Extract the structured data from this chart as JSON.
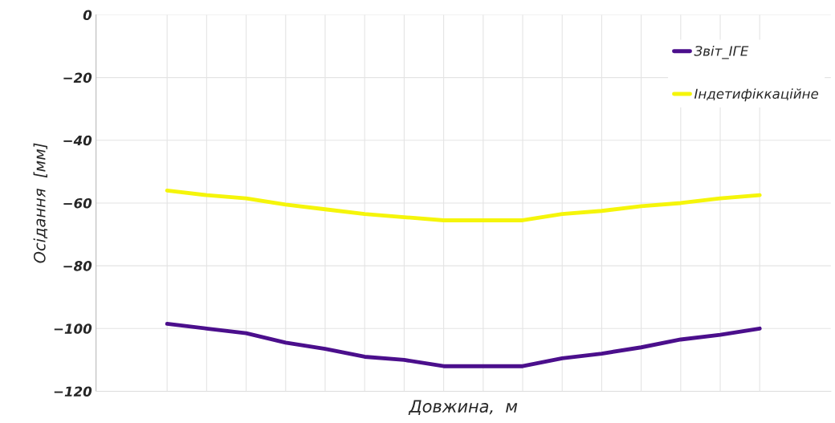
{
  "chart_data": {
    "type": "line",
    "xlabel": "Довжина,  м",
    "ylabel": "Осідання  [мм]",
    "categories": [
      null,
      null,
      null,
      null,
      null,
      null,
      null,
      null,
      null,
      null,
      null,
      null,
      null,
      null,
      null,
      null
    ],
    "series": [
      {
        "name": "Звіт_ІГЕ",
        "color": "#4b0f8c",
        "values": [
          -98.5,
          -100,
          -101.5,
          -104.5,
          -106.5,
          -109,
          -110,
          -112,
          -112,
          -112,
          -109.5,
          -108,
          -106,
          -103.5,
          -102,
          -100
        ]
      },
      {
        "name": "Індетифіккаційне",
        "color": "#f5f50a",
        "values": [
          -56,
          -57.5,
          -58.5,
          -60.5,
          -62,
          -63.5,
          -64.5,
          -65.5,
          -65.5,
          -65.5,
          -63.5,
          -62.5,
          -61,
          -60,
          -58.5,
          -57.5
        ]
      }
    ],
    "ylim": [
      -120,
      0
    ],
    "yticks": [
      -120,
      -100,
      -80,
      -60,
      -40,
      -20,
      0
    ],
    "grid": true,
    "legend": "top right",
    "marker": "none",
    "line_style": "solid"
  }
}
